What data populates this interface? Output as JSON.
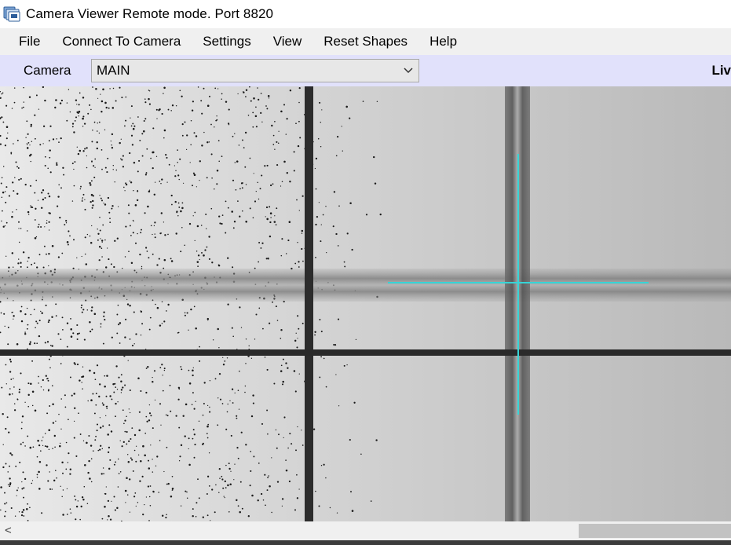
{
  "window": {
    "title": "Camera Viewer Remote mode. Port 8820"
  },
  "menu": {
    "items": [
      {
        "label": "File"
      },
      {
        "label": "Connect To Camera"
      },
      {
        "label": "Settings"
      },
      {
        "label": "View"
      },
      {
        "label": "Reset Shapes"
      },
      {
        "label": "Help"
      }
    ]
  },
  "toolbar": {
    "camera_label": "Camera",
    "camera_value": "MAIN",
    "live_text": "Liv"
  },
  "viewer": {
    "crosshair_color": "#36d4d6"
  },
  "scrollbar": {
    "left_arrow": "<"
  }
}
